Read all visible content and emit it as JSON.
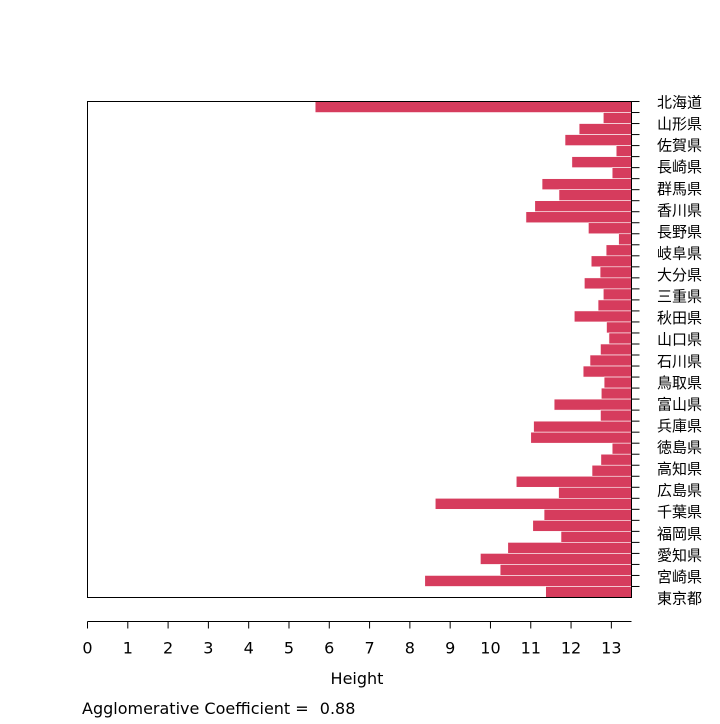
{
  "chart_data": {
    "type": "bar",
    "orientation": "horizontal",
    "plot_kind": "banner",
    "xlabel": "Height",
    "xlim": [
      0,
      13.5
    ],
    "x_ticks": [
      0,
      1,
      2,
      3,
      4,
      5,
      6,
      7,
      8,
      9,
      10,
      11,
      12,
      13
    ],
    "x_tick_labels": [
      "0",
      "1",
      "2",
      "3",
      "4",
      "5",
      "6",
      "7",
      "8",
      "9",
      "10",
      "11",
      "12",
      "13"
    ],
    "y_tick_labels": [
      "北海道",
      "山形県",
      "佐賀県",
      "長崎県",
      "群馬県",
      "香川県",
      "長野県",
      "岐阜県",
      "大分県",
      "三重県",
      "秋田県",
      "山口県",
      "石川県",
      "鳥取県",
      "富山県",
      "兵庫県",
      "徳島県",
      "高知県",
      "広島県",
      "千葉県",
      "福岡県",
      "愛知県",
      "宮崎県",
      "東京都"
    ],
    "values": [
      7.85,
      0.7,
      1.3,
      1.65,
      0.38,
      1.48,
      0.48,
      2.22,
      1.8,
      2.4,
      2.62,
      1.07,
      0.32,
      0.63,
      1.0,
      0.78,
      1.17,
      0.7,
      0.83,
      1.42,
      0.62,
      0.56,
      0.77,
      1.03,
      1.2,
      0.68,
      0.75,
      1.92,
      0.77,
      2.43,
      2.5,
      0.48,
      0.76,
      0.98,
      2.86,
      1.81,
      4.87,
      2.17,
      2.45,
      1.75,
      3.07,
      3.75,
      3.26,
      5.13,
      2.13
    ],
    "bar_color": "#d63c5d",
    "grid": false
  },
  "footer": {
    "label": "Agglomerative Coefficient = ",
    "value": "0.88"
  }
}
